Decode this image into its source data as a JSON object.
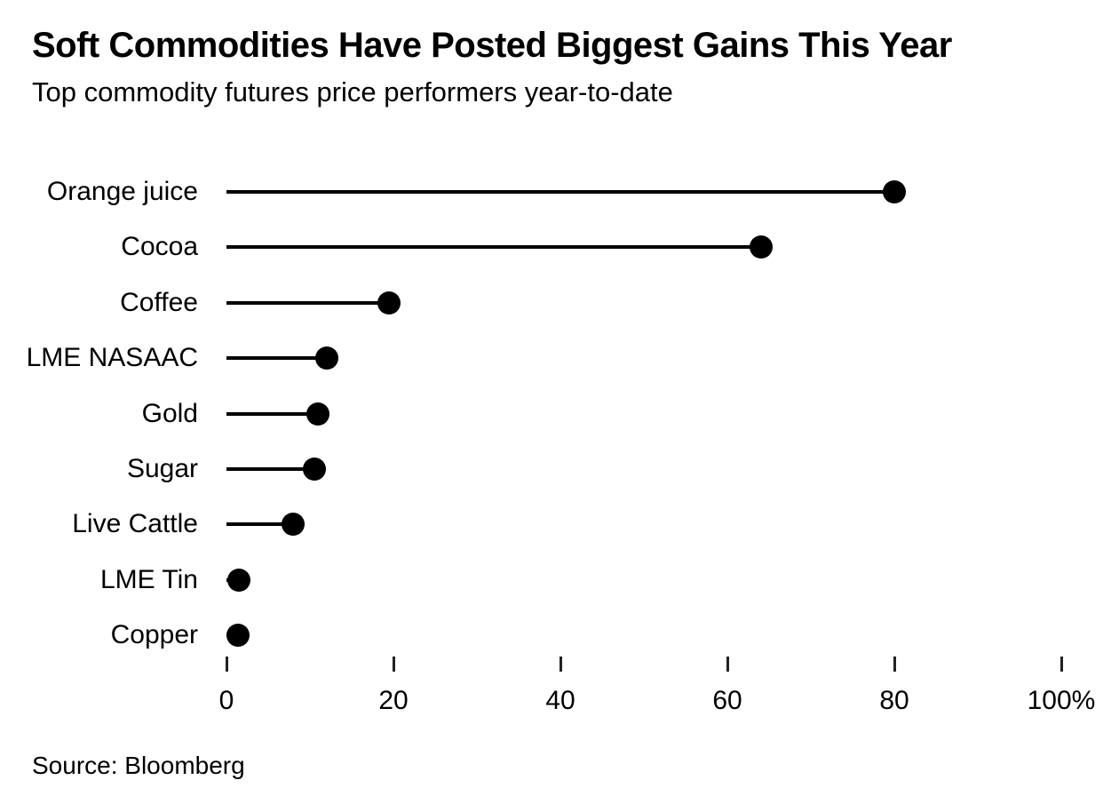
{
  "header": {
    "title": "Soft Commodities Have Posted Biggest Gains This Year",
    "subtitle": "Top commodity futures price performers year-to-date"
  },
  "source": {
    "label": "Source: Bloomberg"
  },
  "colors": {
    "text": "#000000",
    "line": "#000000",
    "dot": "#000000",
    "tick": "#222222",
    "background": "#ffffff"
  },
  "chart_data": {
    "type": "bar",
    "variant": "lollipop",
    "orientation": "horizontal",
    "title": "Soft Commodities Have Posted Biggest Gains This Year",
    "subtitle": "Top commodity futures price performers year-to-date",
    "categories": [
      "Orange juice",
      "Cocoa",
      "Coffee",
      "LME NASAAC",
      "Gold",
      "Sugar",
      "Live Cattle",
      "LME Tin",
      "Copper"
    ],
    "values": [
      80,
      64,
      19.5,
      12,
      11,
      10.5,
      8,
      1.5,
      1.4
    ],
    "unit": "%",
    "xlabel": "",
    "ylabel": "",
    "xlim": [
      0,
      100
    ],
    "xticks": [
      0,
      20,
      40,
      60,
      80,
      100
    ],
    "xtick_labels": [
      "0",
      "20",
      "40",
      "60",
      "80",
      "100%"
    ],
    "grid": false,
    "legend": false,
    "source": "Source: Bloomberg"
  }
}
